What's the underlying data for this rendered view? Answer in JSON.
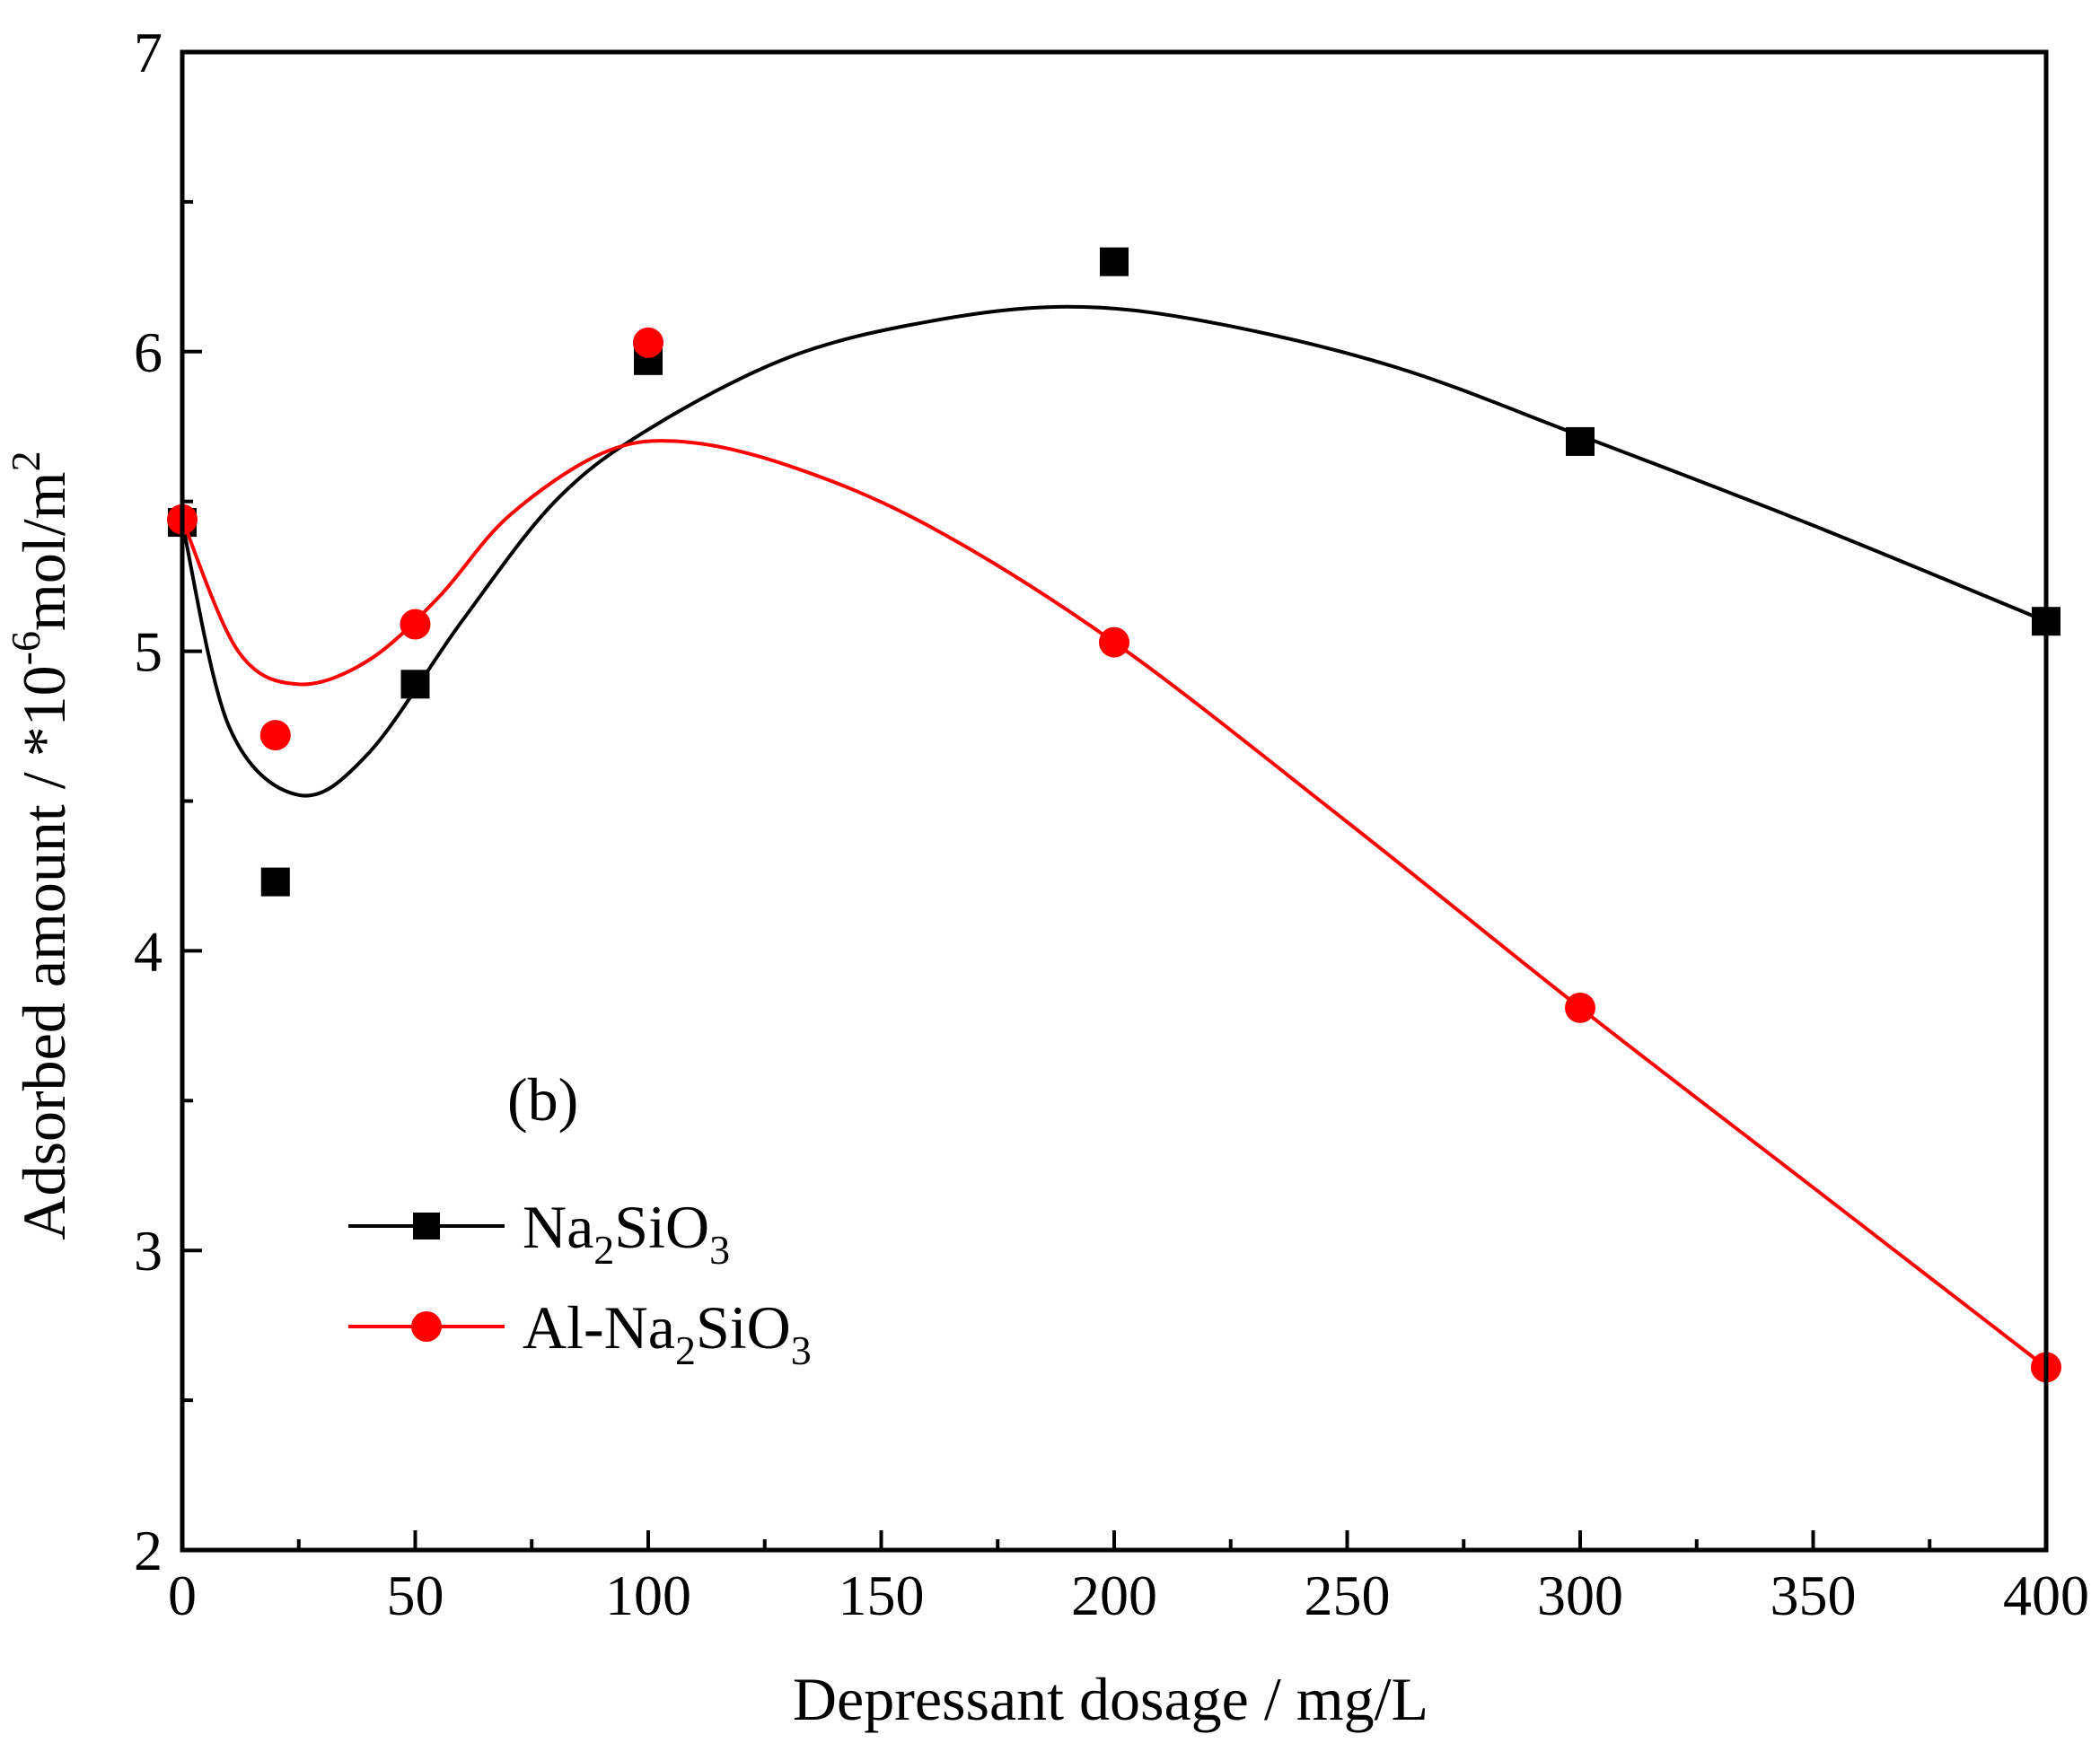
{
  "chart_data": {
    "type": "scatter",
    "title": "",
    "annotation": "(b)",
    "xlabel": "Depressant dosage / mg/L",
    "ylabel": {
      "prefix": "Adsorbed amount / *10",
      "exp": "-6",
      "mid": "mol/m",
      "exp2": "2"
    },
    "xlim": [
      0,
      400
    ],
    "ylim": [
      2,
      7
    ],
    "xticks": [
      "0",
      "50",
      "100",
      "150",
      "200",
      "250",
      "300",
      "350",
      "400"
    ],
    "yticks": [
      "2",
      "3",
      "4",
      "5",
      "6",
      "7"
    ],
    "legend_position": "lower-left",
    "series": [
      {
        "name": "Na2SiO3",
        "legend": {
          "base": "Na",
          "sub1": "2",
          "mid": "SiO",
          "sub2": "3"
        },
        "color": "#000000",
        "marker": "square",
        "x": [
          0,
          20,
          50,
          100,
          200,
          300,
          400
        ],
        "y": [
          5.43,
          4.23,
          4.89,
          5.97,
          6.3,
          5.7,
          5.1
        ],
        "fit_x": [
          0,
          10,
          25,
          40,
          60,
          80,
          100,
          130,
          160,
          190,
          220,
          260,
          300,
          350,
          400
        ],
        "fit_y": [
          5.43,
          4.75,
          4.52,
          4.66,
          5.1,
          5.5,
          5.74,
          5.98,
          6.1,
          6.15,
          6.1,
          5.95,
          5.72,
          5.42,
          5.1
        ]
      },
      {
        "name": "Al-Na2SiO3",
        "legend": {
          "base": "Al-Na",
          "sub1": "2",
          "mid": "SiO",
          "sub2": "3"
        },
        "color": "#ff0000",
        "marker": "circle",
        "x": [
          0,
          20,
          50,
          100,
          200,
          300,
          400
        ],
        "y": [
          5.44,
          4.72,
          5.09,
          6.03,
          5.03,
          3.81,
          2.61
        ],
        "fit_x": [
          0,
          12,
          25,
          40,
          55,
          70,
          90,
          107,
          130,
          160,
          200,
          250,
          300,
          350,
          400
        ],
        "fit_y": [
          5.44,
          5.0,
          4.89,
          4.97,
          5.18,
          5.45,
          5.66,
          5.7,
          5.62,
          5.42,
          5.03,
          4.43,
          3.81,
          3.21,
          2.61
        ]
      }
    ]
  }
}
